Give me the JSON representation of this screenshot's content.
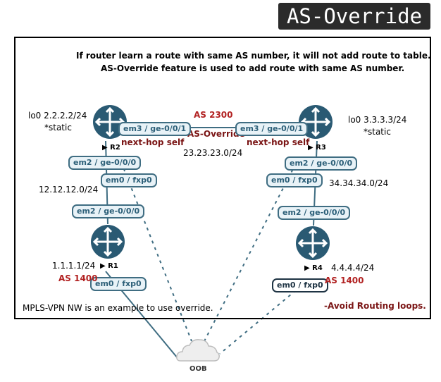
{
  "title": "AS-Override",
  "note_line1": "If router learn a route with same AS number, it will not add route to table.",
  "note_line2": "AS-Override feature is used to add route with same AS number.",
  "footer_left": "MPLS-VPN NW is an example to use override.",
  "footer_right": "-Avoid Routing loops.",
  "center": {
    "as": "AS 2300",
    "override": "AS-Override",
    "subnet": "23.23.23.0/24"
  },
  "routers": {
    "r1": {
      "name": "R1",
      "lo": "1.1.1.1/24",
      "as": "AS 1400",
      "fxp0": "em0 / fxp0",
      "ge": "em2 / ge-0/0/0"
    },
    "r2": {
      "name": "R2",
      "lo": "lo0 2.2.2.2/24",
      "static": "*static",
      "nhs": "next-hop self",
      "ge1": "em3 / ge-0/0/1",
      "ge0": "em2 / ge-0/0/0",
      "fxp0": "em0 / fxp0"
    },
    "r3": {
      "name": "R3",
      "lo": "lo0 3.3.3.3/24",
      "static": "*static",
      "nhs": "next-hop self",
      "ge1": "em3 / ge-0/0/1",
      "ge0": "em2 / ge-0/0/0",
      "fxp0": "em0 / fxp0"
    },
    "r4": {
      "name": "R4",
      "lo": "4.4.4.4/24",
      "as": "AS 1400",
      "fxp0": "em0 / fxp0",
      "ge": "em2 / ge-0/0/0"
    }
  },
  "links": {
    "r1_r2": "12.12.12.0/24",
    "r3_r4": "34.34.34.0/24"
  },
  "oob": "OOB",
  "colors": {
    "router": "#2a5a73",
    "link": "#3f6d82",
    "as_text": "#b22222",
    "nhs_text": "#7a1414"
  }
}
